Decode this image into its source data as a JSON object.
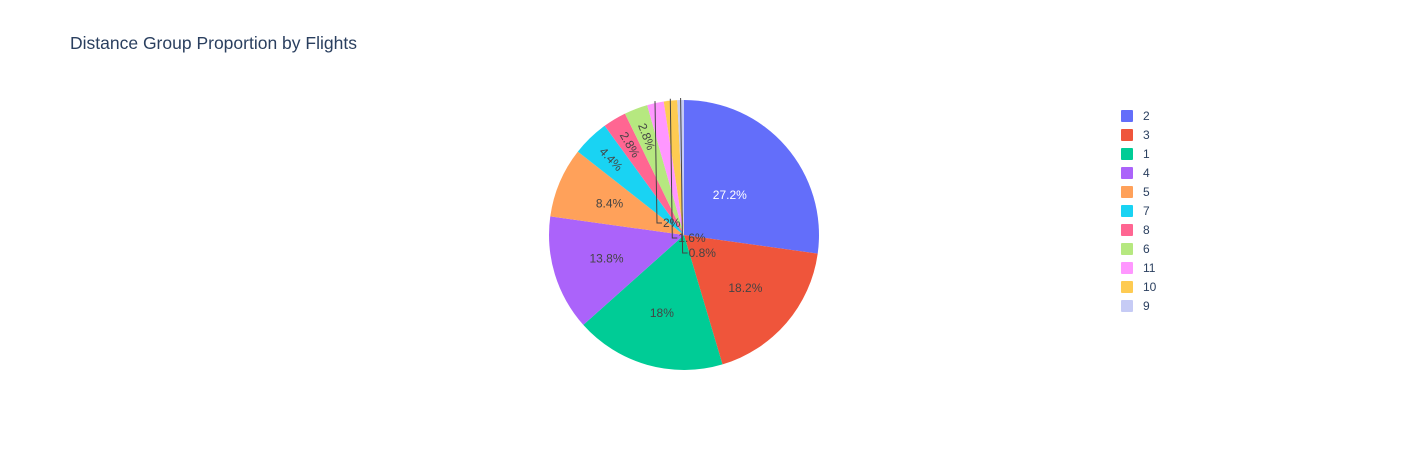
{
  "chart_data": {
    "type": "pie",
    "title": "Distance Group Proportion by Flights",
    "sort": "descending",
    "direction": "clockwise",
    "start": "12 o'clock",
    "legend_position": "right",
    "slices": [
      {
        "label": "2",
        "percent": 27.2,
        "text": "27.2%",
        "color": "#636efa",
        "label_color": "#ffffff",
        "label_mode": "inside"
      },
      {
        "label": "3",
        "percent": 18.2,
        "text": "18.2%",
        "color": "#ef553b",
        "label_color": "#444444",
        "label_mode": "inside"
      },
      {
        "label": "1",
        "percent": 18.0,
        "text": "18%",
        "color": "#00cc96",
        "label_color": "#444444",
        "label_mode": "inside"
      },
      {
        "label": "4",
        "percent": 13.8,
        "text": "13.8%",
        "color": "#ab63fa",
        "label_color": "#444444",
        "label_mode": "inside"
      },
      {
        "label": "5",
        "percent": 8.4,
        "text": "8.4%",
        "color": "#ffa15a",
        "label_color": "#444444",
        "label_mode": "inside"
      },
      {
        "label": "7",
        "percent": 4.4,
        "text": "4.4%",
        "color": "#19d3f3",
        "label_color": "#444444",
        "label_mode": "inside-rotated"
      },
      {
        "label": "8",
        "percent": 2.8,
        "text": "2.8%",
        "color": "#ff6692",
        "label_color": "#444444",
        "label_mode": "inside-rotated"
      },
      {
        "label": "6",
        "percent": 2.8,
        "text": "2.8%",
        "color": "#b6e880",
        "label_color": "#444444",
        "label_mode": "inside-rotated"
      },
      {
        "label": "11",
        "percent": 2.0,
        "text": "2%",
        "color": "#ff97ff",
        "label_color": "#444444",
        "label_mode": "outside"
      },
      {
        "label": "10",
        "percent": 1.6,
        "text": "1.6%",
        "color": "#fecb52",
        "label_color": "#444444",
        "label_mode": "outside"
      },
      {
        "label": "9",
        "percent": 0.8,
        "text": "0.8%",
        "color": "#c6cbf5",
        "label_color": "#444444",
        "label_mode": "outside"
      }
    ]
  }
}
